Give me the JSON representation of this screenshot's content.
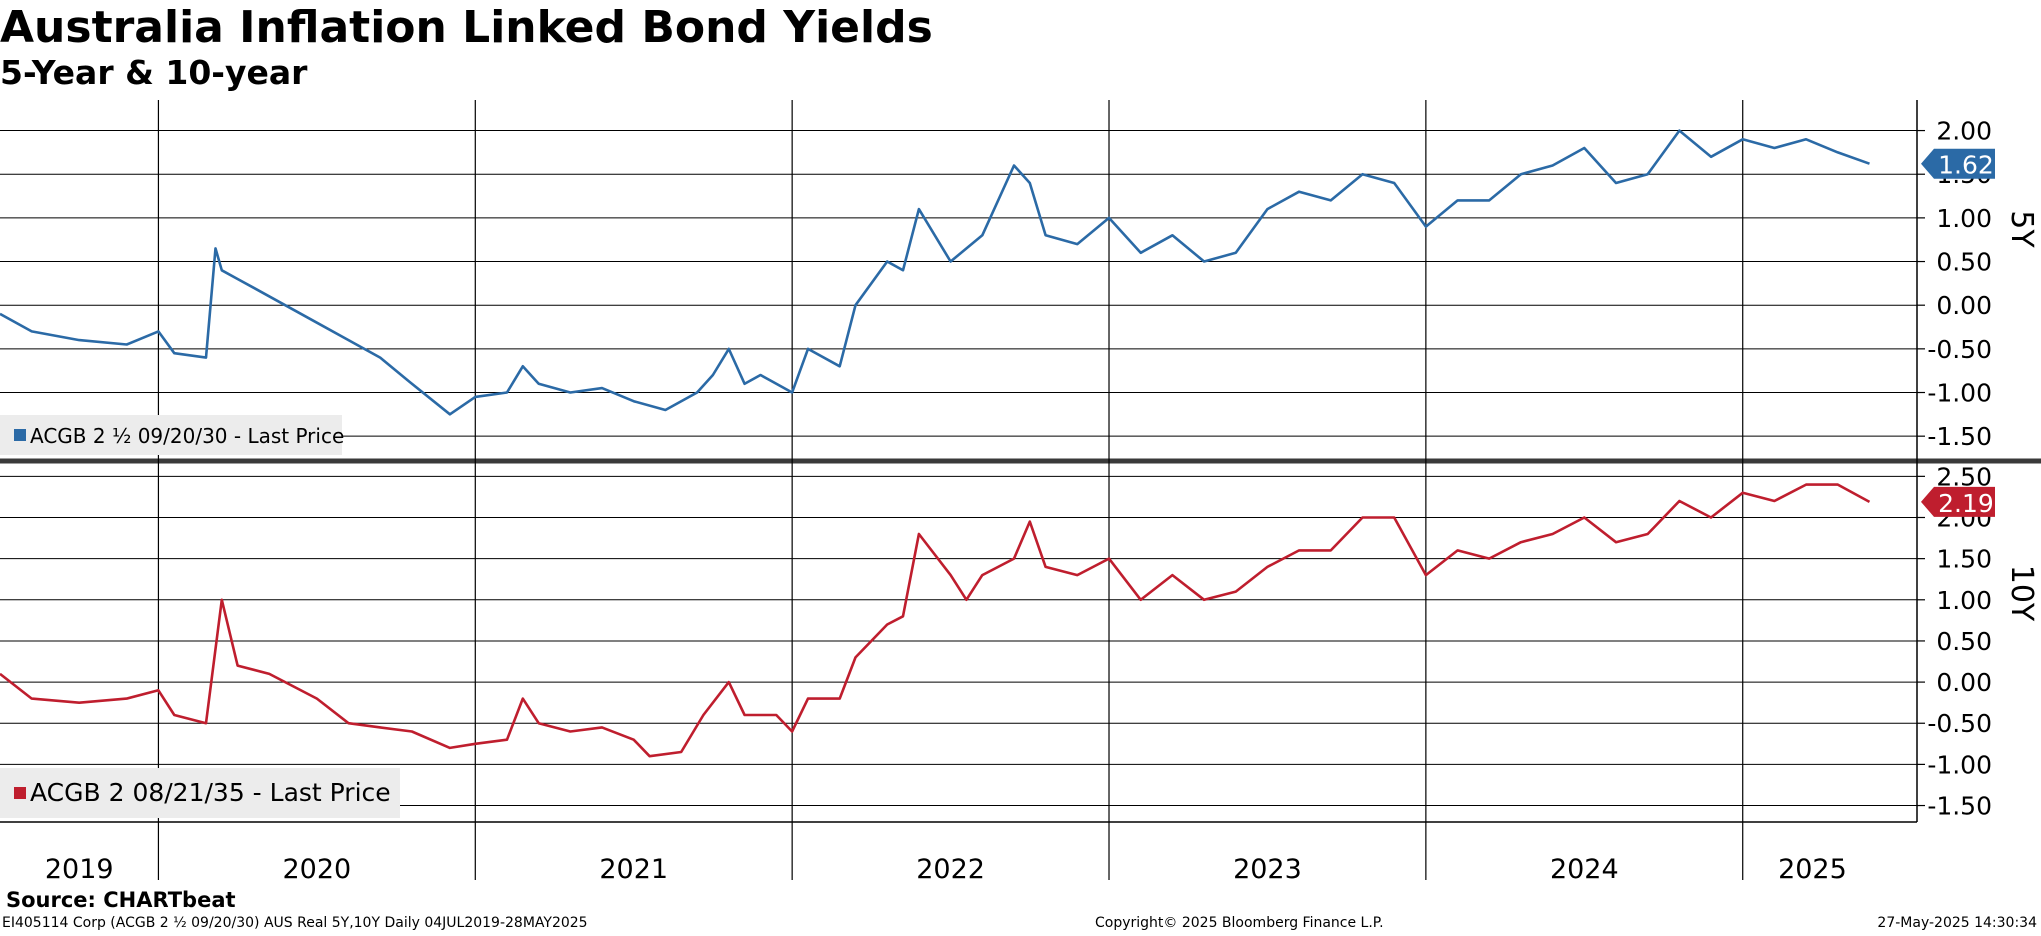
{
  "title": "Australia Inflation Linked Bond Yields",
  "subtitle": "5-Year & 10-year",
  "source": "Source: CHARTbeat",
  "footer": {
    "left": "EI405114 Corp (ACGB 2 ½ 09/20/30) AUS Real 5Y,10Y  Daily 04JUL2019-28MAY2025",
    "center": "Copyright© 2025 Bloomberg Finance L.P.",
    "right": "27-May-2025 14:30:34"
  },
  "chart_data": [
    {
      "type": "line",
      "panel_label": "5Y",
      "series": [
        {
          "name": "ACGB 2 ½ 09/20/30 - Last Price",
          "color": "#2b6aa6",
          "last_value": "1.62",
          "points": [
            [
              2019.5,
              -0.1
            ],
            [
              2019.6,
              -0.3
            ],
            [
              2019.75,
              -0.4
            ],
            [
              2019.9,
              -0.45
            ],
            [
              2020.0,
              -0.3
            ],
            [
              2020.05,
              -0.55
            ],
            [
              2020.15,
              -0.6
            ],
            [
              2020.18,
              0.65
            ],
            [
              2020.2,
              0.4
            ],
            [
              2020.25,
              0.3
            ],
            [
              2020.3,
              0.2
            ],
            [
              2020.4,
              0.0
            ],
            [
              2020.5,
              -0.2
            ],
            [
              2020.6,
              -0.4
            ],
            [
              2020.7,
              -0.6
            ],
            [
              2020.8,
              -0.9
            ],
            [
              2020.92,
              -1.25
            ],
            [
              2021.0,
              -1.05
            ],
            [
              2021.1,
              -1.0
            ],
            [
              2021.15,
              -0.7
            ],
            [
              2021.2,
              -0.9
            ],
            [
              2021.3,
              -1.0
            ],
            [
              2021.4,
              -0.95
            ],
            [
              2021.5,
              -1.1
            ],
            [
              2021.6,
              -1.2
            ],
            [
              2021.7,
              -1.0
            ],
            [
              2021.75,
              -0.8
            ],
            [
              2021.8,
              -0.5
            ],
            [
              2021.85,
              -0.9
            ],
            [
              2021.9,
              -0.8
            ],
            [
              2022.0,
              -1.0
            ],
            [
              2022.05,
              -0.5
            ],
            [
              2022.15,
              -0.7
            ],
            [
              2022.2,
              0.0
            ],
            [
              2022.3,
              0.5
            ],
            [
              2022.35,
              0.4
            ],
            [
              2022.4,
              1.1
            ],
            [
              2022.5,
              0.5
            ],
            [
              2022.6,
              0.8
            ],
            [
              2022.7,
              1.6
            ],
            [
              2022.75,
              1.4
            ],
            [
              2022.8,
              0.8
            ],
            [
              2022.9,
              0.7
            ],
            [
              2023.0,
              1.0
            ],
            [
              2023.1,
              0.6
            ],
            [
              2023.2,
              0.8
            ],
            [
              2023.3,
              0.5
            ],
            [
              2023.4,
              0.6
            ],
            [
              2023.5,
              1.1
            ],
            [
              2023.6,
              1.3
            ],
            [
              2023.7,
              1.2
            ],
            [
              2023.8,
              1.5
            ],
            [
              2023.9,
              1.4
            ],
            [
              2024.0,
              0.9
            ],
            [
              2024.1,
              1.2
            ],
            [
              2024.2,
              1.2
            ],
            [
              2024.3,
              1.5
            ],
            [
              2024.4,
              1.6
            ],
            [
              2024.5,
              1.8
            ],
            [
              2024.6,
              1.4
            ],
            [
              2024.7,
              1.5
            ],
            [
              2024.8,
              2.0
            ],
            [
              2024.9,
              1.7
            ],
            [
              2025.0,
              1.9
            ],
            [
              2025.1,
              1.8
            ],
            [
              2025.2,
              1.9
            ],
            [
              2025.3,
              1.75
            ],
            [
              2025.4,
              1.62
            ]
          ]
        }
      ],
      "ylim": [
        -1.75,
        2.35
      ],
      "yticks": [
        "-1.50",
        "-1.00",
        "-0.50",
        "0.00",
        "0.50",
        "1.00",
        "1.50",
        "2.00"
      ]
    },
    {
      "type": "line",
      "panel_label": "10Y",
      "series": [
        {
          "name": "ACGB 2 08/21/35 - Last Price",
          "color": "#bf1e2e",
          "last_value": "2.19",
          "points": [
            [
              2019.5,
              0.1
            ],
            [
              2019.6,
              -0.2
            ],
            [
              2019.75,
              -0.25
            ],
            [
              2019.9,
              -0.2
            ],
            [
              2020.0,
              -0.1
            ],
            [
              2020.05,
              -0.4
            ],
            [
              2020.15,
              -0.5
            ],
            [
              2020.2,
              1.0
            ],
            [
              2020.25,
              0.2
            ],
            [
              2020.35,
              0.1
            ],
            [
              2020.5,
              -0.2
            ],
            [
              2020.6,
              -0.5
            ],
            [
              2020.7,
              -0.55
            ],
            [
              2020.8,
              -0.6
            ],
            [
              2020.92,
              -0.8
            ],
            [
              2021.0,
              -0.75
            ],
            [
              2021.1,
              -0.7
            ],
            [
              2021.15,
              -0.2
            ],
            [
              2021.2,
              -0.5
            ],
            [
              2021.3,
              -0.6
            ],
            [
              2021.4,
              -0.55
            ],
            [
              2021.5,
              -0.7
            ],
            [
              2021.55,
              -0.9
            ],
            [
              2021.65,
              -0.85
            ],
            [
              2021.72,
              -0.4
            ],
            [
              2021.8,
              0.0
            ],
            [
              2021.85,
              -0.4
            ],
            [
              2021.95,
              -0.4
            ],
            [
              2022.0,
              -0.6
            ],
            [
              2022.05,
              -0.2
            ],
            [
              2022.15,
              -0.2
            ],
            [
              2022.2,
              0.3
            ],
            [
              2022.3,
              0.7
            ],
            [
              2022.35,
              0.8
            ],
            [
              2022.4,
              1.8
            ],
            [
              2022.5,
              1.3
            ],
            [
              2022.55,
              1.0
            ],
            [
              2022.6,
              1.3
            ],
            [
              2022.7,
              1.5
            ],
            [
              2022.75,
              1.95
            ],
            [
              2022.8,
              1.4
            ],
            [
              2022.9,
              1.3
            ],
            [
              2023.0,
              1.5
            ],
            [
              2023.1,
              1.0
            ],
            [
              2023.2,
              1.3
            ],
            [
              2023.3,
              1.0
            ],
            [
              2023.4,
              1.1
            ],
            [
              2023.5,
              1.4
            ],
            [
              2023.6,
              1.6
            ],
            [
              2023.7,
              1.6
            ],
            [
              2023.8,
              2.0
            ],
            [
              2023.9,
              2.0
            ],
            [
              2024.0,
              1.3
            ],
            [
              2024.1,
              1.6
            ],
            [
              2024.2,
              1.5
            ],
            [
              2024.3,
              1.7
            ],
            [
              2024.4,
              1.8
            ],
            [
              2024.5,
              2.0
            ],
            [
              2024.6,
              1.7
            ],
            [
              2024.7,
              1.8
            ],
            [
              2024.8,
              2.2
            ],
            [
              2024.9,
              2.0
            ],
            [
              2025.0,
              2.3
            ],
            [
              2025.1,
              2.2
            ],
            [
              2025.2,
              2.4
            ],
            [
              2025.3,
              2.4
            ],
            [
              2025.4,
              2.19
            ]
          ]
        }
      ],
      "ylim": [
        -1.7,
        2.65
      ],
      "yticks": [
        "-1.50",
        "-1.00",
        "-0.50",
        "0.00",
        "0.50",
        "1.00",
        "1.50",
        "2.00",
        "2.50"
      ]
    }
  ],
  "x_axis": {
    "labels": [
      "2019",
      "2020",
      "2021",
      "2022",
      "2023",
      "2024",
      "2025"
    ],
    "xlim": [
      2019.5,
      2025.55
    ]
  }
}
